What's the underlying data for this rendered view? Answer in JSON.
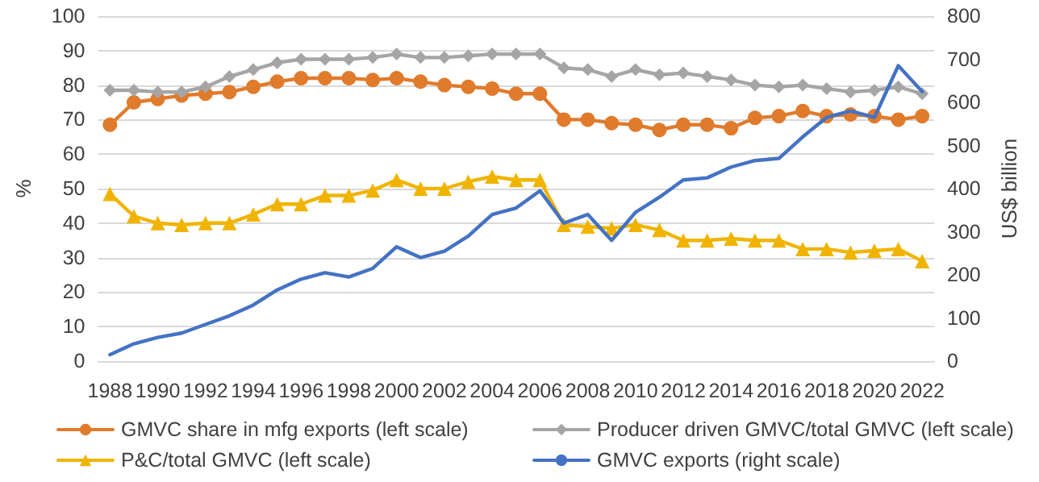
{
  "chart_data": {
    "type": "line",
    "xlabel": null,
    "ylabel": "%",
    "y2label": "US$ billion",
    "categories": [
      "1988",
      null,
      "1990",
      null,
      "1992",
      null,
      "1994",
      null,
      "1996",
      null,
      "1998",
      null,
      "2000",
      null,
      "2002",
      null,
      "2004",
      null,
      "2006",
      null,
      "2008",
      null,
      "2010",
      null,
      "2012",
      null,
      "2014",
      null,
      "2016",
      null,
      "2018",
      null,
      "2020",
      null,
      "2022"
    ],
    "series": [
      {
        "name": "GMVC share in mfg exports (left scale)",
        "color": "#e07b2c",
        "marker": "circle",
        "values": [
          68.5,
          75,
          76,
          77,
          77.5,
          78,
          79.5,
          81,
          82,
          82,
          82,
          81.5,
          82,
          81,
          80,
          79.5,
          79,
          77.5,
          77.5,
          70,
          70,
          69,
          68.5,
          67,
          68.5,
          68.5,
          67.5,
          70.5,
          71,
          72.5,
          71,
          71.5,
          71,
          70,
          71
        ]
      },
      {
        "name": "Producer driven GMVC/total GMVC (left scale)",
        "color": "#a5a5a5",
        "marker": "diamond",
        "values": [
          78.5,
          78.5,
          78,
          78,
          79.5,
          82.5,
          84.5,
          86.5,
          87.5,
          87.5,
          87.5,
          88,
          89,
          88,
          88,
          88.5,
          89,
          89,
          89,
          85,
          84.5,
          82.5,
          84.5,
          83,
          83.5,
          82.5,
          81.5,
          80,
          79.5,
          80,
          79,
          78,
          78.5,
          79.5,
          77.5
        ]
      },
      {
        "name": "P&C/total GMVC (left scale)",
        "color": "#f0b400",
        "marker": "triangle",
        "values": [
          48.5,
          42,
          40,
          39.5,
          40,
          40,
          42.5,
          45.5,
          45.5,
          48,
          48,
          49.5,
          52.5,
          50,
          50,
          52,
          53.5,
          52.5,
          52.5,
          39.5,
          39,
          38.5,
          39.5,
          38,
          35,
          35,
          35.5,
          35,
          35,
          32.5,
          32.5,
          31.5,
          32,
          32.5,
          29
        ]
      },
      {
        "name": "GMVC exports (right scale)",
        "color": "#4472c4",
        "marker": "none",
        "axis": "y2",
        "values": [
          15,
          40,
          55,
          65,
          85,
          105,
          130,
          165,
          190,
          205,
          195,
          215,
          265,
          240,
          255,
          290,
          340,
          355,
          395,
          320,
          340,
          280,
          345,
          380,
          420,
          425,
          450,
          465,
          470,
          520,
          565,
          580,
          565,
          685,
          625
        ]
      }
    ],
    "ylim": [
      0,
      100
    ],
    "yticks": [
      0,
      10,
      20,
      30,
      40,
      50,
      60,
      70,
      80,
      90,
      100
    ],
    "y2lim": [
      0,
      800
    ],
    "y2ticks": [
      0,
      100,
      200,
      300,
      400,
      500,
      600,
      700,
      800
    ],
    "grid": "y",
    "legend": "bottom"
  }
}
